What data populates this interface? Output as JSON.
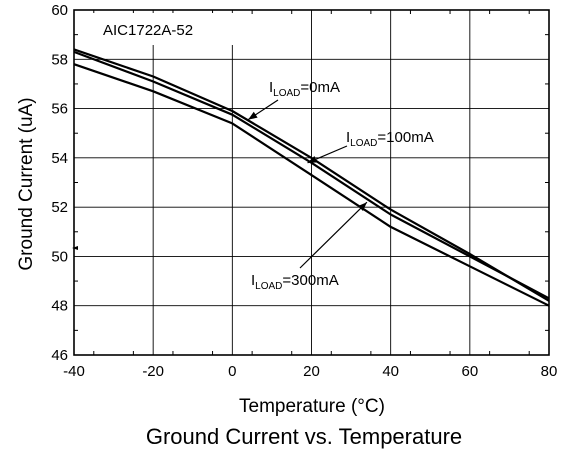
{
  "chart_data": {
    "type": "line",
    "title": "Ground Current vs. Temperature",
    "chip_label": "AIC1722A-52",
    "xlabel": "Temperature (°C)",
    "ylabel": "Ground Current (uA)",
    "xlim": [
      -40,
      80
    ],
    "ylim": [
      46,
      60
    ],
    "x_ticks": [
      -40,
      -20,
      0,
      20,
      40,
      60,
      80
    ],
    "y_ticks": [
      46,
      48,
      50,
      52,
      54,
      56,
      58,
      60
    ],
    "x_tick_labels": [
      "-40",
      "-20",
      "0",
      "20",
      "40",
      "60",
      "80"
    ],
    "y_tick_labels": [
      "46",
      "48",
      "50",
      "52",
      "54",
      "56",
      "58",
      "60"
    ],
    "grid": true,
    "series": [
      {
        "name": "ILOAD=0mA",
        "label_main": "I",
        "label_sub": "LOAD",
        "label_rest": "=0mA",
        "points": [
          [
            -40,
            58.4
          ],
          [
            -20,
            57.3
          ],
          [
            0,
            55.9
          ],
          [
            20,
            54.0
          ],
          [
            40,
            51.9
          ],
          [
            60,
            50.1
          ],
          [
            80,
            48.2
          ]
        ]
      },
      {
        "name": "ILOAD=100mA",
        "label_main": "I",
        "label_sub": "LOAD",
        "label_rest": "=100mA",
        "points": [
          [
            -40,
            58.3
          ],
          [
            -20,
            57.1
          ],
          [
            0,
            55.75
          ],
          [
            20,
            53.8
          ],
          [
            40,
            51.7
          ],
          [
            60,
            50.0
          ],
          [
            80,
            48.3
          ]
        ]
      },
      {
        "name": "ILOAD=300mA",
        "label_main": "I",
        "label_sub": "LOAD",
        "label_rest": "=300mA",
        "points": [
          [
            -40,
            57.8
          ],
          [
            -20,
            56.7
          ],
          [
            0,
            55.4
          ],
          [
            20,
            53.3
          ],
          [
            40,
            51.2
          ],
          [
            60,
            49.6
          ],
          [
            80,
            48.0
          ]
        ]
      }
    ]
  }
}
